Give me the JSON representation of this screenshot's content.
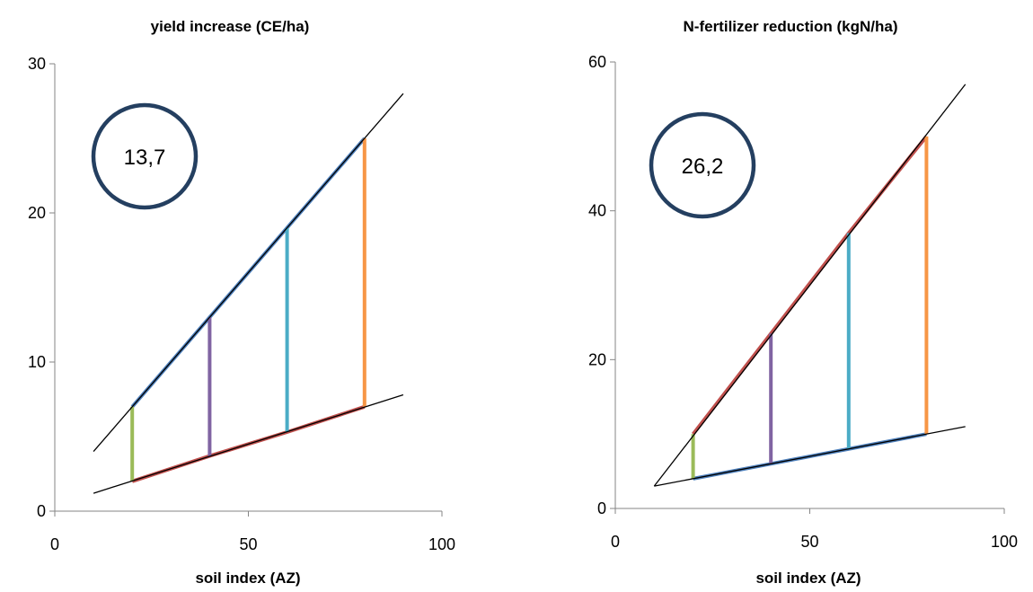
{
  "colors": {
    "axis": "#868686",
    "fit_line": "#000000",
    "upper_line": "#4f81bd",
    "lower_line": "#c0504d",
    "circle": "#243f60",
    "bar_colors": [
      "#9bbb59",
      "#8064a2",
      "#4bacc6",
      "#f79646"
    ]
  },
  "chart_data": [
    {
      "type": "line",
      "title": "yield increase (CE/ha)",
      "xlabel": "soil index (AZ)",
      "ylabel": "",
      "xlim": [
        0,
        100
      ],
      "ylim": [
        0,
        30
      ],
      "x_ticks": [
        "0",
        "50",
        "100"
      ],
      "y_ticks": [
        "0",
        "10",
        "20",
        "30"
      ],
      "grid": false,
      "badge": "13,7",
      "fit_lines": [
        {
          "x": [
            10,
            90
          ],
          "y": [
            4.0,
            28.0
          ]
        },
        {
          "x": [
            10,
            90
          ],
          "y": [
            1.2,
            7.8
          ]
        }
      ],
      "series": [
        {
          "x": [
            20,
            40,
            60,
            80
          ],
          "y": [
            7.0,
            13.0,
            19.0,
            25.0
          ],
          "color": "#4f81bd"
        },
        {
          "x": [
            20,
            40,
            60,
            80
          ],
          "y": [
            2.0,
            3.7,
            5.3,
            7.0
          ],
          "color": "#c0504d"
        }
      ],
      "bars": [
        {
          "x": 20,
          "y_low": 2.0,
          "y_high": 7.0
        },
        {
          "x": 40,
          "y_low": 3.7,
          "y_high": 13.0
        },
        {
          "x": 60,
          "y_low": 5.3,
          "y_high": 19.0
        },
        {
          "x": 80,
          "y_low": 7.0,
          "y_high": 25.0
        }
      ]
    },
    {
      "type": "line",
      "title": "N-fertilizer reduction (kgN/ha)",
      "xlabel": "soil index (AZ)",
      "ylabel": "",
      "xlim": [
        0,
        100
      ],
      "ylim": [
        0,
        60
      ],
      "x_ticks": [
        "0",
        "50",
        "100"
      ],
      "y_ticks": [
        "0",
        "20",
        "40",
        "60"
      ],
      "grid": false,
      "badge": "26,2",
      "fit_lines": [
        {
          "x": [
            10,
            90
          ],
          "y": [
            3.0,
            57.0
          ]
        },
        {
          "x": [
            10,
            90
          ],
          "y": [
            3.0,
            11.0
          ]
        }
      ],
      "series": [
        {
          "x": [
            20,
            40,
            60,
            80
          ],
          "y": [
            10.0,
            23.5,
            37.0,
            50.0
          ],
          "color": "#c0504d"
        },
        {
          "x": [
            20,
            40,
            60,
            80
          ],
          "y": [
            4.0,
            6.0,
            8.0,
            10.0
          ],
          "color": "#4f81bd"
        }
      ],
      "bars": [
        {
          "x": 20,
          "y_low": 4.0,
          "y_high": 10.0
        },
        {
          "x": 40,
          "y_low": 6.0,
          "y_high": 23.5
        },
        {
          "x": 60,
          "y_low": 8.0,
          "y_high": 37.0
        },
        {
          "x": 80,
          "y_low": 10.0,
          "y_high": 50.0
        }
      ]
    }
  ]
}
